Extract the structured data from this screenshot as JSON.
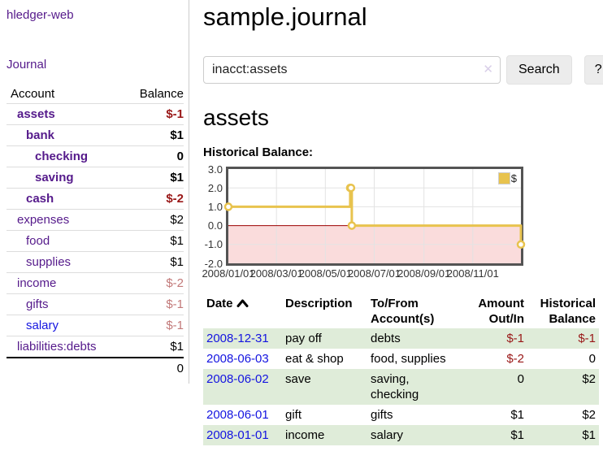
{
  "colors": {
    "link_purple": "#551a8b",
    "link_blue": "#1414e0",
    "negative_strong": "#991717",
    "negative_dim": "#c27979",
    "row_green": "#dfecd9",
    "row_line": "#dddddd",
    "divider": "#cccccc",
    "chart_border": "#545454",
    "clear_icon": "#d9cfe8"
  },
  "sidebar": {
    "app_title": "hledger-web",
    "nav": {
      "journal": "Journal"
    },
    "accounts_table": {
      "headers": {
        "account": "Account",
        "balance": "Balance"
      },
      "rows": [
        {
          "name": "assets",
          "depth": 0,
          "balance": "$-1",
          "bold": true,
          "tone": "neg"
        },
        {
          "name": "bank",
          "depth": 1,
          "balance": "$1",
          "bold": true,
          "tone": ""
        },
        {
          "name": "checking",
          "depth": 2,
          "balance": "0",
          "bold": true,
          "tone": ""
        },
        {
          "name": "saving",
          "depth": 2,
          "balance": "$1",
          "bold": true,
          "tone": ""
        },
        {
          "name": "cash",
          "depth": 1,
          "balance": "$-2",
          "bold": true,
          "tone": "neg"
        },
        {
          "name": "expenses",
          "depth": 0,
          "balance": "$2",
          "bold": false,
          "tone": ""
        },
        {
          "name": "food",
          "depth": 1,
          "balance": "$1",
          "bold": false,
          "tone": ""
        },
        {
          "name": "supplies",
          "depth": 1,
          "balance": "$1",
          "bold": false,
          "tone": ""
        },
        {
          "name": "income",
          "depth": 0,
          "balance": "$-2",
          "bold": false,
          "tone": "neg-dim"
        },
        {
          "name": "gifts",
          "depth": 1,
          "balance": "$-1",
          "bold": false,
          "tone": "neg-dim"
        },
        {
          "name": "salary",
          "depth": 1,
          "balance": "$-1",
          "bold": false,
          "tone": "neg-dim",
          "link": "blue"
        },
        {
          "name": "liabilities:debts",
          "depth": 0,
          "balance": "$1",
          "bold": false,
          "tone": ""
        }
      ],
      "total": "0"
    }
  },
  "main": {
    "title": "sample.journal",
    "search": {
      "value": "inacct:assets",
      "clear_icon": "✕",
      "search_button": "Search",
      "help_button": "?"
    },
    "account_heading": "assets",
    "chart_title": "Historical Balance:"
  },
  "chart_data": {
    "type": "line",
    "step": true,
    "title": "Historical Balance of assets",
    "series": [
      {
        "name": "$",
        "color": "#e8c34e",
        "points": [
          [
            "2008-01-01",
            1
          ],
          [
            "2008-06-01",
            2
          ],
          [
            "2008-06-02",
            2
          ],
          [
            "2008-06-03",
            0
          ],
          [
            "2008-12-31",
            -1
          ]
        ]
      }
    ],
    "x_range": [
      "2008-01-01",
      "2008-12-31"
    ],
    "y_range": [
      -2.0,
      3.0
    ],
    "y_ticks": [
      "3.0",
      "2.0",
      "1.0",
      "0.0",
      "-1.0",
      "-2.0"
    ],
    "x_ticks": [
      {
        "date": "2008-01-01",
        "label": "2008/01/01"
      },
      {
        "date": "2008-03-01",
        "label": "2008/03/01"
      },
      {
        "date": "2008-05-01",
        "label": "2008/05/01"
      },
      {
        "date": "2008-07-01",
        "label": "2008/07/01"
      },
      {
        "date": "2008-09-01",
        "label": "2008/09/01"
      },
      {
        "date": "2008-11-01",
        "label": "2008/11/01"
      }
    ],
    "legend": {
      "label": "$",
      "position": "top-right"
    },
    "grid": true,
    "grid_color": "#e3e3e3",
    "zero_line_color": "#9b0000",
    "negative_region_color": "#fadcdc",
    "marker_fill": "#ffffff"
  },
  "register": {
    "headers": [
      {
        "label": "Date",
        "align": "left",
        "sortable": true,
        "sort": "ascending"
      },
      {
        "label": "Description",
        "align": "left"
      },
      {
        "label": "To/From Account(s)",
        "align": "left"
      },
      {
        "label": "Amount Out/In",
        "align": "right"
      },
      {
        "label": "Historical Balance",
        "align": "right"
      }
    ],
    "rows": [
      {
        "date": "2008-12-31",
        "description": "pay off",
        "accounts": "debts",
        "amount": "$-1",
        "amount_neg": true,
        "balance": "$-1",
        "balance_neg": true
      },
      {
        "date": "2008-06-03",
        "description": "eat & shop",
        "accounts": "food, supplies",
        "amount": "$-2",
        "amount_neg": true,
        "balance": "0",
        "balance_neg": false
      },
      {
        "date": "2008-06-02",
        "description": "save",
        "accounts": "saving, checking",
        "amount": "0",
        "amount_neg": false,
        "balance": "$2",
        "balance_neg": false
      },
      {
        "date": "2008-06-01",
        "description": "gift",
        "accounts": "gifts",
        "amount": "$1",
        "amount_neg": false,
        "balance": "$2",
        "balance_neg": false
      },
      {
        "date": "2008-01-01",
        "description": "income",
        "accounts": "salary",
        "amount": "$1",
        "amount_neg": false,
        "balance": "$1",
        "balance_neg": false
      }
    ]
  }
}
